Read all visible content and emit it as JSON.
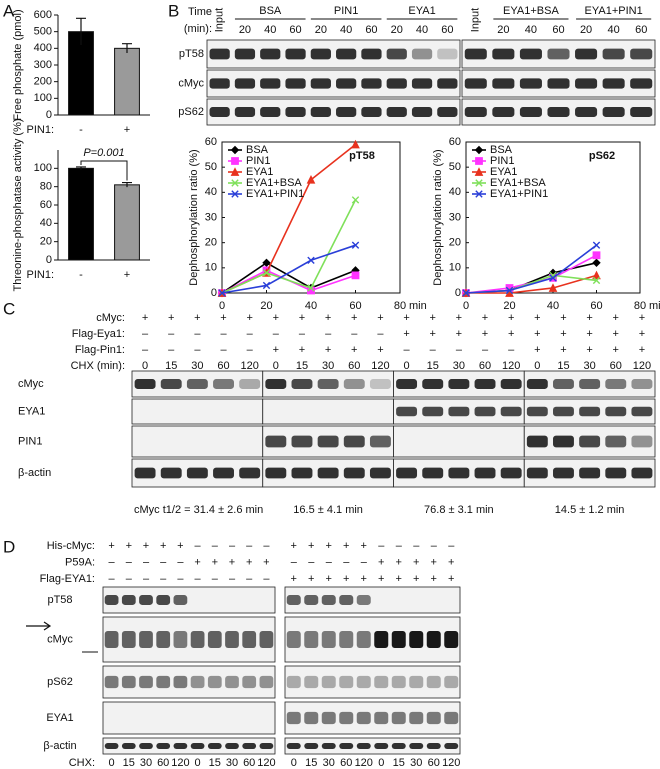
{
  "panel_labels": [
    "A",
    "B",
    "C",
    "D"
  ],
  "chart_data": [
    {
      "type": "bar",
      "ylabel": "Free phosphate (pmol)",
      "xlabel": "PIN1:",
      "categories": [
        "-",
        "+"
      ],
      "values": [
        500,
        400
      ],
      "errors": [
        80,
        28
      ],
      "colors": [
        "#000000",
        "#9a9a9a"
      ],
      "ylim": [
        0,
        600
      ],
      "yticks": [
        0,
        100,
        200,
        300,
        400,
        500,
        600
      ]
    },
    {
      "type": "bar",
      "ylabel": "Threonine-phosphatase activity (%)",
      "xlabel": "PIN1:",
      "categories": [
        "-",
        "+"
      ],
      "values": [
        100,
        82
      ],
      "errors": [
        1.5,
        2.5
      ],
      "colors": [
        "#000000",
        "#9a9a9a"
      ],
      "ylim": [
        0,
        120
      ],
      "yticks": [
        0,
        20,
        40,
        60,
        80,
        100
      ],
      "annotation": "P=0.001"
    },
    {
      "type": "line",
      "title": "pT58",
      "ylabel": "Dephosphorylation ratio (%)",
      "x": [
        0,
        20,
        40,
        60
      ],
      "xlim": [
        0,
        80
      ],
      "xticks": [
        0,
        20,
        40,
        60,
        80
      ],
      "x_unit": "min",
      "ylim": [
        0,
        60
      ],
      "yticks": [
        0,
        10,
        20,
        30,
        40,
        50,
        60
      ],
      "series": [
        {
          "name": "BSA",
          "color": "#000000",
          "marker": "diamond",
          "values": [
            0,
            12,
            2,
            9
          ]
        },
        {
          "name": "PIN1",
          "color": "#ff33ff",
          "marker": "square",
          "values": [
            0,
            9,
            1,
            7
          ]
        },
        {
          "name": "EYA1",
          "color": "#e8321e",
          "marker": "triangle",
          "values": [
            0,
            8,
            45,
            59
          ]
        },
        {
          "name": "EYA1+BSA",
          "color": "#7fe05a",
          "marker": "x",
          "values": [
            0,
            8,
            2,
            37
          ]
        },
        {
          "name": "EYA1+PIN1",
          "color": "#2a3fd8",
          "marker": "x",
          "values": [
            0,
            3,
            13,
            19
          ]
        }
      ]
    },
    {
      "type": "line",
      "title": "pS62",
      "ylabel": "Dephosphorylation ratio (%)",
      "x": [
        0,
        20,
        40,
        60
      ],
      "xlim": [
        0,
        80
      ],
      "xticks": [
        0,
        20,
        40,
        60,
        80
      ],
      "x_unit": "min",
      "ylim": [
        0,
        60
      ],
      "yticks": [
        0,
        10,
        20,
        30,
        40,
        50,
        60
      ],
      "series": [
        {
          "name": "BSA",
          "color": "#000000",
          "marker": "diamond",
          "values": [
            0,
            1,
            8,
            12
          ]
        },
        {
          "name": "PIN1",
          "color": "#ff33ff",
          "marker": "square",
          "values": [
            0,
            2,
            6,
            15
          ]
        },
        {
          "name": "EYA1",
          "color": "#e8321e",
          "marker": "triangle",
          "values": [
            0,
            0,
            2,
            7
          ]
        },
        {
          "name": "EYA1+BSA",
          "color": "#7fe05a",
          "marker": "x",
          "values": [
            0,
            1,
            7,
            5
          ]
        },
        {
          "name": "EYA1+PIN1",
          "color": "#2a3fd8",
          "marker": "x",
          "values": [
            0,
            1,
            6,
            19
          ]
        }
      ]
    }
  ],
  "blot_b": {
    "time_label": [
      "Time",
      "(min):"
    ],
    "panels": [
      {
        "input": "Input",
        "groups": [
          {
            "name": "BSA",
            "times": [
              "20",
              "40",
              "60"
            ]
          },
          {
            "name": "PIN1",
            "times": [
              "20",
              "40",
              "60"
            ]
          },
          {
            "name": "EYA1",
            "times": [
              "20",
              "40",
              "60"
            ]
          }
        ]
      },
      {
        "input": "Input",
        "groups": [
          {
            "name": "EYA1+BSA",
            "times": [
              "20",
              "40",
              "60"
            ]
          },
          {
            "name": "EYA1+PIN1",
            "times": [
              "20",
              "40",
              "60"
            ]
          }
        ]
      }
    ],
    "rows": [
      "pT58",
      "cMyc",
      "pS62"
    ]
  },
  "blot_c": {
    "conditions": [
      {
        "label": "cMyc:",
        "lanes": [
          "+",
          "+",
          "+",
          "+",
          "+",
          "+",
          "+",
          "+",
          "+",
          "+",
          "+",
          "+",
          "+",
          "+",
          "+",
          "+",
          "+",
          "+",
          "+",
          "+"
        ]
      },
      {
        "label": "Flag-Eya1:",
        "lanes": [
          "–",
          "–",
          "–",
          "–",
          "–",
          "–",
          "–",
          "–",
          "–",
          "–",
          "+",
          "+",
          "+",
          "+",
          "+",
          "+",
          "+",
          "+",
          "+",
          "+"
        ]
      },
      {
        "label": "Flag-Pin1:",
        "lanes": [
          "–",
          "–",
          "–",
          "–",
          "–",
          "+",
          "+",
          "+",
          "+",
          "+",
          "–",
          "–",
          "–",
          "–",
          "–",
          "+",
          "+",
          "+",
          "+",
          "+"
        ]
      },
      {
        "label": "CHX (min):",
        "lanes": [
          "0",
          "15",
          "30",
          "60",
          "120",
          "0",
          "15",
          "30",
          "60",
          "120",
          "0",
          "15",
          "30",
          "60",
          "120",
          "0",
          "15",
          "30",
          "60",
          "120"
        ]
      }
    ],
    "rows": [
      "cMyc",
      "EYA1",
      "PIN1",
      "β-actin"
    ],
    "half_lives": [
      "cMyc t1/2 = 31.4 ± 2.6 min",
      "16.5 ± 4.1 min",
      "76.8 ± 3.1 min",
      "14.5 ± 1.2 min"
    ]
  },
  "blot_d": {
    "conditions": [
      {
        "label": "His-cMyc:",
        "lanes": [
          "+",
          "+",
          "+",
          "+",
          "+",
          "–",
          "–",
          "–",
          "–",
          "–",
          "+",
          "+",
          "+",
          "+",
          "+",
          "–",
          "–",
          "–",
          "–",
          "–"
        ]
      },
      {
        "label": "P59A:",
        "lanes": [
          "–",
          "–",
          "–",
          "–",
          "–",
          "+",
          "+",
          "+",
          "+",
          "+",
          "–",
          "–",
          "–",
          "–",
          "–",
          "+",
          "+",
          "+",
          "+",
          "+"
        ]
      },
      {
        "label": "Flag-EYA1:",
        "lanes": [
          "–",
          "–",
          "–",
          "–",
          "–",
          "–",
          "–",
          "–",
          "–",
          "–",
          "+",
          "+",
          "+",
          "+",
          "+",
          "+",
          "+",
          "+",
          "+",
          "+"
        ]
      }
    ],
    "rows": [
      "pT58",
      "cMyc",
      "pS62",
      "EYA1",
      "β-actin"
    ],
    "chx": {
      "label": "CHX:",
      "lanes": [
        "0",
        "15",
        "30",
        "60",
        "120",
        "0",
        "15",
        "30",
        "60",
        "120",
        "0",
        "15",
        "30",
        "60",
        "120",
        "0",
        "15",
        "30",
        "60",
        "120"
      ]
    }
  }
}
